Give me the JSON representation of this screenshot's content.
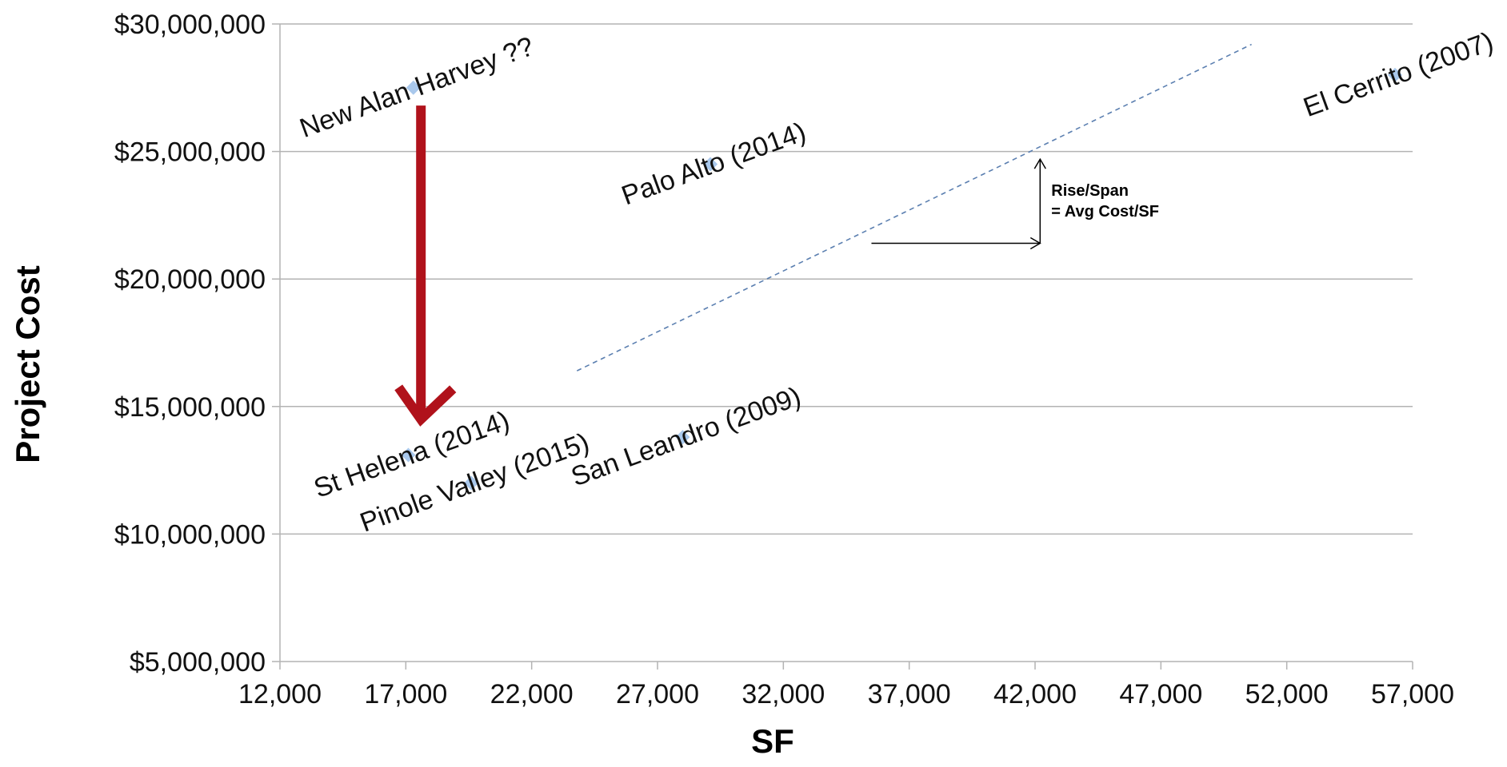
{
  "chart_data": {
    "type": "scatter",
    "title": "",
    "xlabel": "SF",
    "ylabel": "Project Cost",
    "xlim": [
      12000,
      57000
    ],
    "ylim": [
      5000000,
      30000000
    ],
    "x_ticks": [
      12000,
      17000,
      22000,
      27000,
      32000,
      37000,
      42000,
      47000,
      52000,
      57000
    ],
    "x_tick_labels": [
      "12,000",
      "17,000",
      "22,000",
      "27,000",
      "32,000",
      "37,000",
      "42,000",
      "47,000",
      "52,000",
      "57,000"
    ],
    "y_ticks": [
      5000000,
      10000000,
      15000000,
      20000000,
      25000000,
      30000000
    ],
    "y_tick_labels": [
      "$5,000,000",
      "$10,000,000",
      "$15,000,000",
      "$20,000,000",
      "$25,000,000",
      "$30,000,000"
    ],
    "grid": "horizontal",
    "points": [
      {
        "label": "New Alan Harvey ??",
        "x": 17300,
        "y": 27500000
      },
      {
        "label": "Palo Alto (2014)",
        "x": 29100,
        "y": 24500000
      },
      {
        "label": "El Cerrito (2007)",
        "x": 56300,
        "y": 28000000
      },
      {
        "label": "St Helena (2014)",
        "x": 17100,
        "y": 13100000
      },
      {
        "label": "Pinole Valley (2015)",
        "x": 19600,
        "y": 12000000
      },
      {
        "label": "San Leandro (2009)",
        "x": 28000,
        "y": 13800000
      }
    ],
    "trendline": {
      "x": [
        23800,
        50600
      ],
      "y": [
        16400000,
        29200000
      ],
      "style": "dashed",
      "color": "#5b7fb0"
    },
    "point_color": "#a9c8ec",
    "arrow_color": "#b0121b",
    "arrow": {
      "x": 17600,
      "y_start": 26800000,
      "y_end": 14500000
    },
    "annotation": {
      "line1": "Rise/Span",
      "line2": "= Avg Cost/SF",
      "x_from": 35500,
      "x_to": 42200,
      "y_from": 21400000,
      "y_to": 24700000
    }
  }
}
